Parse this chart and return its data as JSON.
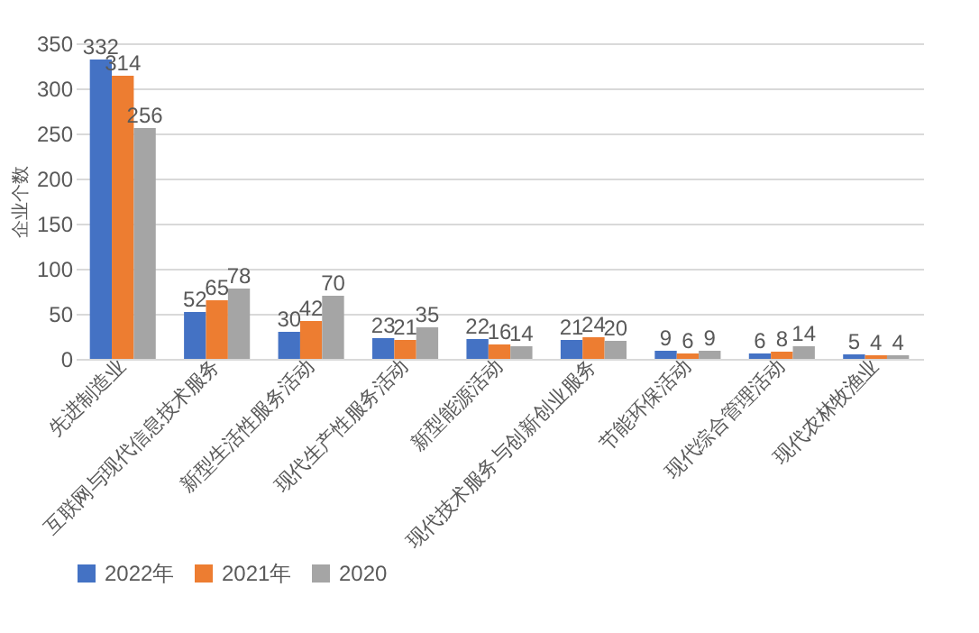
{
  "chart_data": {
    "type": "bar",
    "ylabel": "企业个数",
    "categories": [
      "先进制造业",
      "互联网与现代信息技术服务",
      "新型生活性服务活动",
      "现代生产性服务活动",
      "新型能源活动",
      "现代技术服务与创新创业服务",
      "节能环保活动",
      "现代综合管理活动",
      "现代农林牧渔业"
    ],
    "series": [
      {
        "name": "2022年",
        "color": "#4472c4",
        "values": [
          332,
          52,
          30,
          23,
          22,
          21,
          9,
          6,
          5
        ]
      },
      {
        "name": "2021年",
        "color": "#ed7d31",
        "values": [
          314,
          65,
          42,
          21,
          16,
          24,
          6,
          8,
          4
        ]
      },
      {
        "name": "2020",
        "color": "#a5a5a5",
        "values": [
          256,
          78,
          70,
          35,
          14,
          20,
          9,
          14,
          4
        ]
      }
    ],
    "ylim": [
      0,
      350
    ],
    "yticks": [
      0,
      50,
      100,
      150,
      200,
      250,
      300,
      350
    ],
    "grid": "y",
    "legend": "bottom",
    "data_labels": true
  }
}
